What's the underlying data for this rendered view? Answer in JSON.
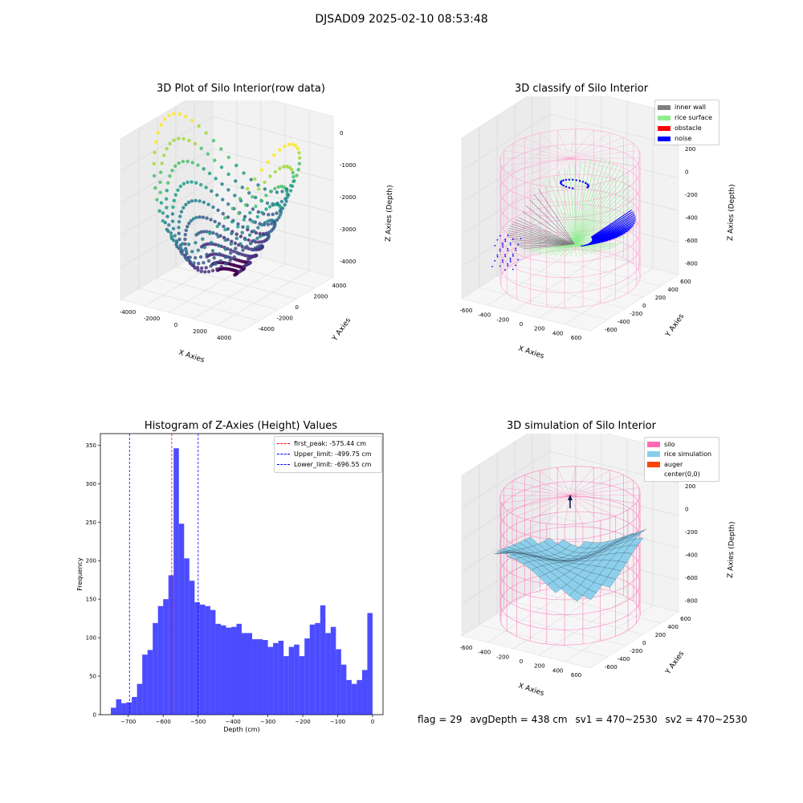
{
  "suptitle": "DJSAD09 2025-02-10 08:53:48",
  "status": {
    "flag": "flag = 29",
    "avg_depth": "avgDepth = 438 cm",
    "sv1": "sv1 = 470~2530",
    "sv2": "sv2 = 470~2530"
  },
  "chart_data": [
    {
      "type": "scatter",
      "projection": "3d",
      "title": "3D Plot of Silo Interior(row data)",
      "xlabel": "X Axies",
      "ylabel": "Y Axies",
      "zlabel": "Z Axies (Depth)",
      "x_ticks": [
        "-4000",
        "-2000",
        "0",
        "2000",
        "4000"
      ],
      "y_ticks": [
        "4000",
        "2000",
        "0",
        "-2000",
        "-4000"
      ],
      "z_ticks": [
        "0",
        "-1000",
        "-2000",
        "-3000",
        "-4000"
      ],
      "colormap": "viridis"
    },
    {
      "type": "scatter",
      "projection": "3d",
      "title": "3D classify of Silo Interior",
      "xlabel": "X Axies",
      "ylabel": "Y Axies",
      "zlabel": "Z Axies (Depth)",
      "x_ticks": [
        "-600",
        "-400",
        "-200",
        "0",
        "200",
        "400",
        "600"
      ],
      "y_ticks": [
        "600",
        "400",
        "200",
        "0",
        "-200",
        "-400",
        "-600"
      ],
      "z_ticks": [
        "400",
        "200",
        "0",
        "-200",
        "-400",
        "-600",
        "-800"
      ],
      "legend_position": "top-right",
      "legend": [
        {
          "label": "inner wall",
          "color": "#808080"
        },
        {
          "label": "rice surface",
          "color": "#90ee90"
        },
        {
          "label": "obstacle",
          "color": "#ff0000"
        },
        {
          "label": "noise",
          "color": "#0000ff"
        }
      ]
    },
    {
      "type": "bar",
      "title": "Histogram of Z-Axies (Height) Values",
      "xlabel": "Depth (cm)",
      "ylabel": "Frequency",
      "bin_width": 15,
      "x_range": [
        -780,
        30
      ],
      "ylim": [
        0,
        365
      ],
      "x_ticks": [
        -700,
        -600,
        -500,
        -400,
        -300,
        -200,
        -100,
        0
      ],
      "y_ticks": [
        0,
        50,
        100,
        150,
        200,
        250,
        300,
        350
      ],
      "bar_color": "#0000ff",
      "bins_start": [
        -750,
        -735,
        -720,
        -705,
        -690,
        -675,
        -660,
        -645,
        -630,
        -615,
        -600,
        -585,
        -570,
        -555,
        -540,
        -525,
        -510,
        -495,
        -480,
        -465,
        -450,
        -435,
        -420,
        -405,
        -390,
        -375,
        -360,
        -345,
        -330,
        -315,
        -300,
        -285,
        -270,
        -255,
        -240,
        -225,
        -210,
        -195,
        -180,
        -165,
        -150,
        -135,
        -120,
        -105,
        -90,
        -75,
        -60,
        -45,
        -30,
        -15
      ],
      "values": [
        9,
        20,
        15,
        16,
        23,
        40,
        78,
        84,
        119,
        141,
        150,
        181,
        346,
        248,
        203,
        174,
        146,
        143,
        141,
        136,
        118,
        116,
        113,
        114,
        118,
        106,
        106,
        98,
        98,
        97,
        88,
        93,
        96,
        76,
        88,
        91,
        76,
        99,
        117,
        119,
        142,
        106,
        114,
        85,
        65,
        45,
        40,
        45,
        58,
        132
      ],
      "vlines": [
        {
          "label": "first_peak: -575.44 cm",
          "x": -575.44,
          "color": "#ff0000"
        },
        {
          "label": "Upper_limit: -499.75 cm",
          "x": -499.75,
          "color": "#0000ff"
        },
        {
          "label": "Lower_limit: -696.55 cm",
          "x": -696.55,
          "color": "#0000ff"
        }
      ],
      "legend_position": "top-right"
    },
    {
      "type": "surface",
      "projection": "3d",
      "title": "3D simulation of Silo Interior",
      "xlabel": "X Axies",
      "ylabel": "Y Axies",
      "zlabel": "Z Axies (Depth)",
      "x_ticks": [
        "-600",
        "-400",
        "-200",
        "0",
        "200",
        "400",
        "600"
      ],
      "y_ticks": [
        "600",
        "400",
        "200",
        "0",
        "-200",
        "-400",
        "-600"
      ],
      "z_ticks": [
        "400",
        "200",
        "0",
        "-200",
        "-400",
        "-600",
        "-800"
      ],
      "legend_position": "top-right",
      "legend": [
        {
          "label": "silo",
          "color": "#ff69b4"
        },
        {
          "label": "rice simulation",
          "color": "#87ceeb"
        },
        {
          "label": "auger",
          "color": "#ff4500"
        },
        {
          "label": "center(0,0)",
          "color": "#ffffff"
        }
      ]
    }
  ]
}
